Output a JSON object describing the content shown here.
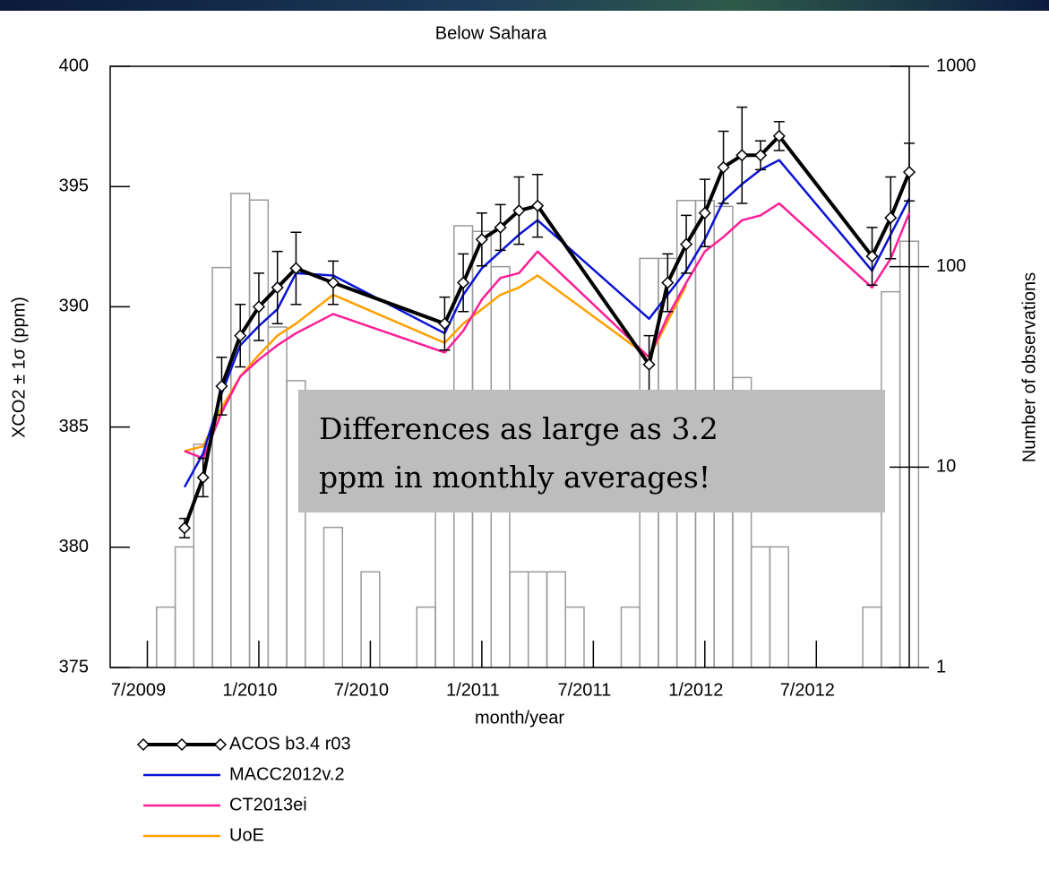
{
  "chart_data": {
    "type": "line",
    "title": "Below Sahara",
    "x_label": "month/year",
    "y_label": "XCO2 ± 1σ (ppm)",
    "y2_label": "Number of observations",
    "annotation": [
      "Differences as large as 3.2",
      "ppm in monthly averages!"
    ],
    "xlim": [
      "5/2009",
      "12/2012"
    ],
    "xticks": [
      "7/2009",
      "1/2010",
      "7/2010",
      "1/2011",
      "7/2011",
      "1/2012",
      "7/2012"
    ],
    "ylim": [
      375,
      400
    ],
    "yticks": [
      375,
      380,
      385,
      390,
      395,
      400
    ],
    "y2lim": [
      1,
      1000
    ],
    "y2ticks": [
      1,
      10,
      100,
      1000
    ],
    "y2_log": true,
    "x": [
      "9/2009",
      "10/2009",
      "11/2009",
      "12/2009",
      "1/2010",
      "2/2010",
      "3/2010",
      "5/2010",
      "11/2010",
      "12/2010",
      "1/2011",
      "2/2011",
      "3/2011",
      "4/2011",
      "10/2011",
      "11/2011",
      "12/2011",
      "1/2012",
      "2/2012",
      "3/2012",
      "4/2012",
      "5/2012",
      "10/2012",
      "11/2012",
      "12/2012"
    ],
    "series": [
      {
        "name": "ACOS b3.4 r03",
        "color": "#000000",
        "values": [
          380.8,
          382.9,
          386.7,
          388.8,
          390.0,
          390.8,
          391.6,
          391.0,
          389.3,
          391.0,
          392.8,
          393.3,
          394.0,
          394.2,
          387.6,
          391.0,
          392.6,
          393.9,
          395.8,
          396.3,
          396.3,
          397.1,
          392.1,
          393.7,
          395.6
        ],
        "errors": [
          0.4,
          0.8,
          1.2,
          1.3,
          1.4,
          1.5,
          1.5,
          0.9,
          1.1,
          1.2,
          1.1,
          0.95,
          1.4,
          1.3,
          1.2,
          1.2,
          1.2,
          1.4,
          1.5,
          2.0,
          0.6,
          0.6,
          1.2,
          1.7,
          1.2
        ]
      },
      {
        "name": "MACC2012v.2",
        "color": "#0a14d2",
        "values": [
          382.5,
          383.9,
          386.4,
          388.4,
          389.2,
          389.9,
          391.4,
          391.3,
          388.9,
          390.5,
          391.6,
          392.3,
          393.0,
          393.6,
          389.5,
          390.5,
          391.5,
          392.8,
          394.4,
          395.1,
          395.7,
          396.1,
          391.5,
          393.0,
          394.5
        ]
      },
      {
        "name": "CT2013ei",
        "color": "#ff1e96",
        "values": [
          384.0,
          383.7,
          385.6,
          387.1,
          387.8,
          388.4,
          388.9,
          389.7,
          388.1,
          389.0,
          390.3,
          391.2,
          391.4,
          392.3,
          387.9,
          389.6,
          391.0,
          392.3,
          392.9,
          393.6,
          393.8,
          394.3,
          390.8,
          392.0,
          393.9
        ]
      },
      {
        "name": "UoE",
        "color": "#ffa000",
        "values": [
          384.0,
          384.2,
          385.8,
          387.1,
          388.0,
          388.8,
          389.3,
          390.5,
          388.5,
          389.3,
          389.9,
          390.5,
          390.8,
          391.3,
          387.9,
          389.4,
          390.9,
          null,
          null,
          null,
          null,
          null,
          null,
          null,
          null
        ]
      }
    ],
    "observations": {
      "color": "#9a9a9a",
      "x": [
        "8/2009",
        "9/2009",
        "10/2009",
        "11/2009",
        "12/2009",
        "1/2010",
        "2/2010",
        "3/2010",
        "4/2010",
        "5/2010",
        "6/2010",
        "7/2010",
        "8/2010",
        "9/2010",
        "10/2010",
        "11/2010",
        "12/2010",
        "1/2011",
        "2/2011",
        "3/2011",
        "4/2011",
        "5/2011",
        "6/2011",
        "7/2011",
        "8/2011",
        "9/2011",
        "10/2011",
        "11/2011",
        "12/2011",
        "1/2012",
        "2/2012",
        "3/2012",
        "4/2012",
        "5/2012",
        "6/2012",
        "7/2012",
        "8/2012",
        "9/2012",
        "10/2012",
        "11/2012",
        "12/2012"
      ],
      "values": [
        2,
        4,
        13,
        99,
        232,
        215,
        50,
        27,
        1,
        5,
        1,
        3,
        1,
        1,
        2,
        24,
        160,
        150,
        100,
        3,
        3,
        3,
        2,
        1,
        1,
        2,
        110,
        110,
        214,
        214,
        200,
        28,
        4,
        4,
        1,
        1,
        1,
        1,
        2,
        75,
        134
      ]
    }
  }
}
